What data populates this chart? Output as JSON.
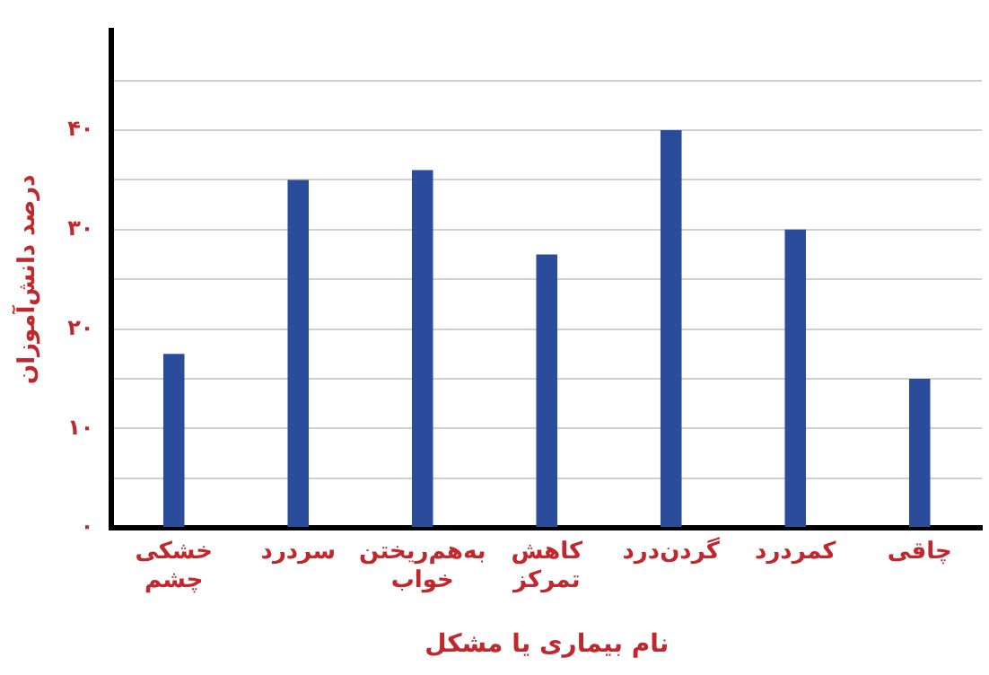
{
  "chart_data": {
    "type": "bar",
    "xlabel": "نام بیماری یا مشکل",
    "ylabel": "درصد دانش‌آموزان",
    "categories": [
      "خشکی چشم",
      "سردرد",
      "به‌هم‌ریختن خواب",
      "کاهش تمرکز",
      "گردن‌درد",
      "کمردرد",
      "چاقی"
    ],
    "values": [
      17.5,
      35,
      36,
      27.5,
      40,
      30,
      15
    ],
    "color": "#2b4c9b",
    "ylim": [
      0,
      50
    ],
    "yticks": [
      {
        "value": 0,
        "label": "۰"
      },
      {
        "value": 5,
        "label": null
      },
      {
        "value": 10,
        "label": "۱۰"
      },
      {
        "value": 15,
        "label": null
      },
      {
        "value": 20,
        "label": "۲۰"
      },
      {
        "value": 25,
        "label": null
      },
      {
        "value": 30,
        "label": "۳۰"
      },
      {
        "value": 35,
        "label": null
      },
      {
        "value": 40,
        "label": "۴۰"
      },
      {
        "value": 45,
        "label": null
      }
    ],
    "grid": "y",
    "legend": false
  }
}
